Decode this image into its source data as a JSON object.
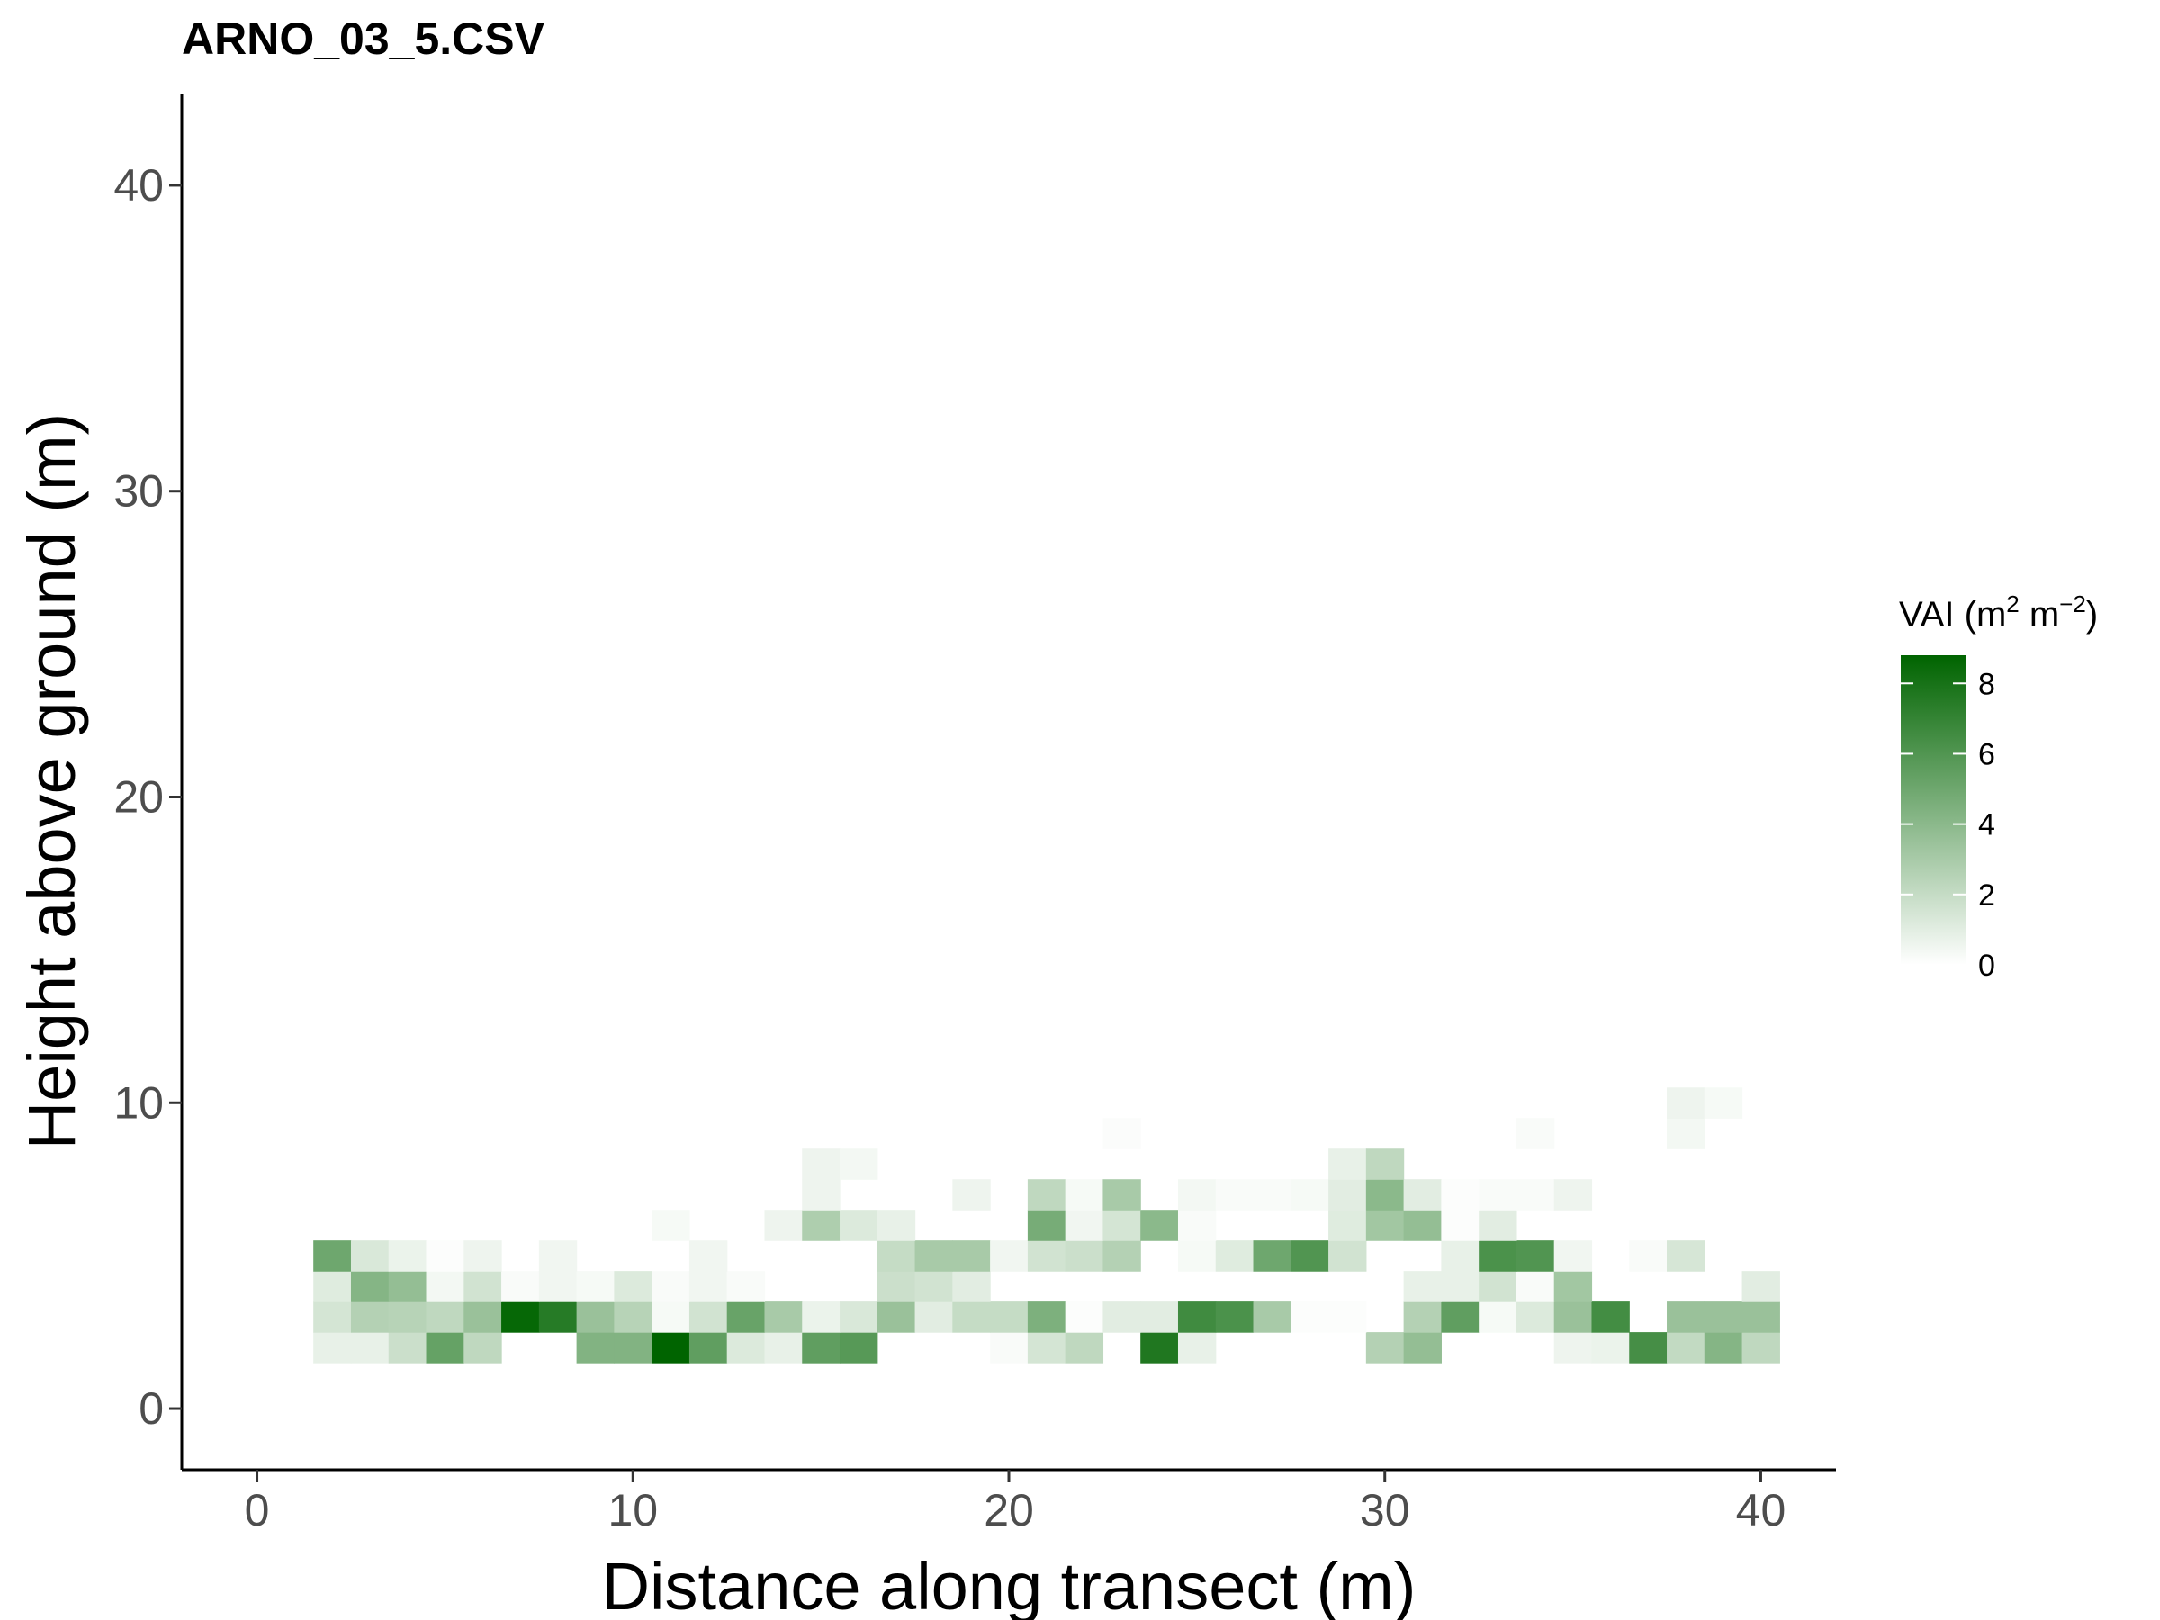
{
  "chart_data": {
    "type": "heatmap",
    "title": "ARNO_03_5.CSV",
    "xlabel": "Distance along transect (m)",
    "ylabel": "Height above ground (m)",
    "xlim": [
      -2,
      42
    ],
    "ylim": [
      -2,
      43
    ],
    "x_ticks": [
      0,
      10,
      20,
      30,
      40
    ],
    "y_ticks": [
      0,
      10,
      20,
      30,
      40
    ],
    "grid": false,
    "cell_size": 1,
    "color_scale": {
      "low": "#ffffff",
      "high": "#006400",
      "min": 0,
      "max": 8.8
    },
    "legend": {
      "title_base": "VAI (m",
      "title_sup1": "2",
      "title_mid": " m",
      "title_sup2": "−2",
      "title_end": ")",
      "ticks": [
        "0",
        "2",
        "4",
        "6",
        "8"
      ],
      "position": "right"
    },
    "rows": [
      {
        "y": 2,
        "values": [
          0,
          0.8,
          0.8,
          1.8,
          5.3,
          2.2,
          0,
          0,
          4.3,
          4.3,
          8.8,
          5.5,
          1.2,
          0.8,
          5.5,
          5.8,
          0,
          0,
          0,
          0.2,
          1.5,
          2.2,
          0,
          7.7,
          0.8,
          0,
          0,
          0,
          0,
          2.6,
          3.7,
          0,
          0,
          0,
          0.6,
          0.7,
          6.4,
          2.1,
          4.2,
          2.2
        ]
      },
      {
        "y": 3,
        "values": [
          0,
          1.5,
          2.6,
          2.5,
          2.2,
          3.5,
          8.6,
          7.5,
          3.5,
          2.5,
          0.3,
          1.6,
          5.2,
          3.0,
          0.7,
          1.3,
          3.5,
          1.0,
          2.0,
          2.0,
          4.5,
          0.1,
          1.0,
          1.0,
          6.6,
          6.2,
          3.0,
          0.1,
          0.1,
          0,
          2.6,
          5.5,
          0.3,
          1.2,
          3.5,
          6.5,
          0,
          3.5,
          3.5,
          3.5
        ]
      },
      {
        "y": 4,
        "values": [
          0,
          1.1,
          4.2,
          3.7,
          0.4,
          1.6,
          0.2,
          0.5,
          0.3,
          1.2,
          0.2,
          0.5,
          0.2,
          0,
          0,
          0,
          1.8,
          1.6,
          1.0,
          0,
          0,
          0,
          0,
          0,
          0,
          0,
          0,
          0,
          0,
          0,
          0.8,
          0.8,
          1.6,
          0.2,
          3.2,
          0,
          0,
          0,
          0,
          1.0
        ]
      },
      {
        "y": 5,
        "values": [
          0,
          5.0,
          1.3,
          0.7,
          0.1,
          0.6,
          0,
          0.5,
          0,
          0,
          0,
          0.5,
          0,
          0,
          0,
          0,
          2.0,
          3.0,
          3.0,
          0.5,
          1.6,
          1.8,
          2.6,
          0,
          0.3,
          1.1,
          5.0,
          6.0,
          1.6,
          0,
          0,
          0.8,
          6.2,
          6.0,
          0.5,
          0,
          0.2,
          1.4,
          0,
          0
        ]
      },
      {
        "y": 6,
        "values": [
          0,
          0,
          0,
          0,
          0,
          0,
          0,
          0,
          0,
          0,
          0.3,
          0,
          0,
          0.6,
          2.8,
          1.2,
          0.8,
          0,
          0,
          0,
          4.7,
          0.5,
          1.5,
          4.0,
          0.2,
          0,
          0,
          0,
          1.1,
          3.2,
          3.7,
          0.1,
          1.0,
          0,
          0,
          0,
          0,
          0,
          0,
          0
        ]
      },
      {
        "y": 7,
        "values": [
          0,
          0,
          0,
          0,
          0,
          0,
          0,
          0,
          0,
          0,
          0,
          0,
          0,
          0,
          0.6,
          0,
          0,
          0,
          0.6,
          0,
          2.2,
          0.3,
          3.0,
          0,
          0.4,
          0.2,
          0.2,
          0.3,
          1.0,
          4.0,
          1.0,
          0.1,
          0.2,
          0.2,
          0.6,
          0,
          0,
          0,
          0,
          0
        ]
      },
      {
        "y": 8,
        "values": [
          0,
          0,
          0,
          0,
          0,
          0,
          0,
          0,
          0,
          0,
          0,
          0,
          0,
          0,
          0.6,
          0.4,
          0,
          0,
          0,
          0,
          0,
          0,
          0,
          0,
          0,
          0,
          0,
          0,
          0.8,
          2.2,
          0,
          0,
          0,
          0,
          0,
          0,
          0,
          0,
          0,
          0
        ]
      },
      {
        "y": 9,
        "values": [
          0,
          0,
          0,
          0,
          0,
          0,
          0,
          0,
          0,
          0,
          0,
          0,
          0,
          0,
          0,
          0,
          0,
          0,
          0,
          0,
          0,
          0,
          0.15,
          0,
          0,
          0,
          0,
          0,
          0,
          0,
          0,
          0,
          0,
          0.2,
          0,
          0,
          0,
          0.4,
          0,
          0
        ]
      },
      {
        "y": 10,
        "values": [
          0,
          0,
          0,
          0,
          0,
          0,
          0,
          0,
          0,
          0,
          0,
          0,
          0,
          0,
          0,
          0,
          0,
          0,
          0,
          0,
          0,
          0,
          0,
          0,
          0,
          0,
          0,
          0,
          0,
          0,
          0,
          0,
          0,
          0,
          0,
          0,
          0,
          0.6,
          0.3,
          0
        ]
      }
    ]
  }
}
